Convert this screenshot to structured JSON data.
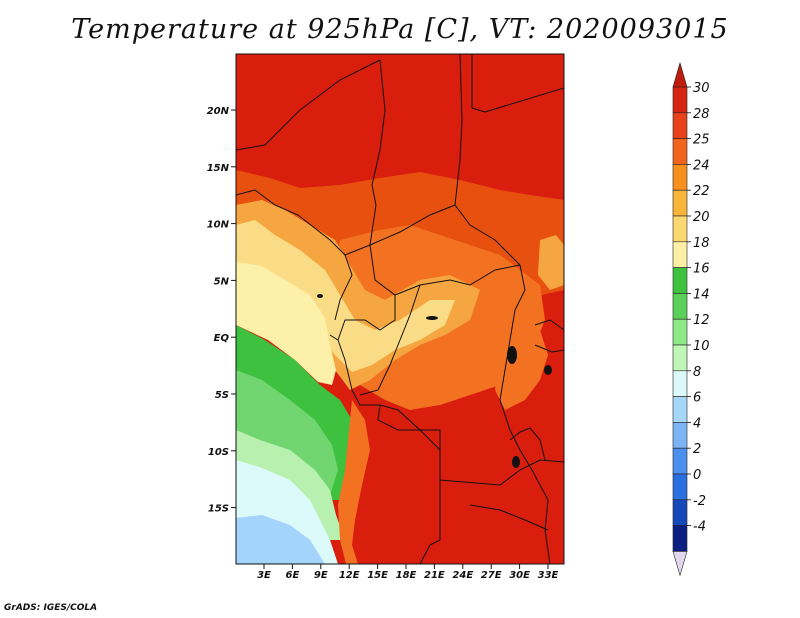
{
  "title": "Temperature at 925hPa [C], VT: 2020093015",
  "credit": "GrADS: IGES/COLA",
  "lat_labels": [
    "20N",
    "15N",
    "10N",
    "5N",
    "EQ",
    "5S",
    "10S",
    "15S"
  ],
  "lon_labels": [
    "3E",
    "6E",
    "9E",
    "12E",
    "15E",
    "18E",
    "21E",
    "24E",
    "27E",
    "30E",
    "33E"
  ],
  "colorbar": {
    "levels": [
      "30",
      "28",
      "25",
      "24",
      "22",
      "20",
      "18",
      "16",
      "14",
      "12",
      "10",
      "8",
      "6",
      "4",
      "2",
      "0",
      "-2",
      "-4"
    ],
    "colors": [
      "#d62610",
      "#e8421a",
      "#f0641e",
      "#f7901f",
      "#f9b43a",
      "#fbd872",
      "#fdf0a6",
      "#3ec13f",
      "#5ad05a",
      "#8ee888",
      "#c0f6b8",
      "#dbf9f9",
      "#a7d6fb",
      "#7cb4f6",
      "#4b8fef",
      "#2a6ee0",
      "#1548b8",
      "#0b1e82"
    ],
    "over_color": "#c01c0e",
    "under_color": "#e3d7f0"
  },
  "map_colors": {
    "hot": "#da1e0e",
    "warm": "#e85010",
    "orange": "#f27222",
    "light_orange": "#f6a640",
    "pale": "#fbdc86",
    "cream": "#fdf0a8",
    "green": "#3ec13f",
    "light_green": "#72d670",
    "mint": "#b8f0b0",
    "ice": "#dcfafa",
    "blue": "#a4d4fb"
  }
}
